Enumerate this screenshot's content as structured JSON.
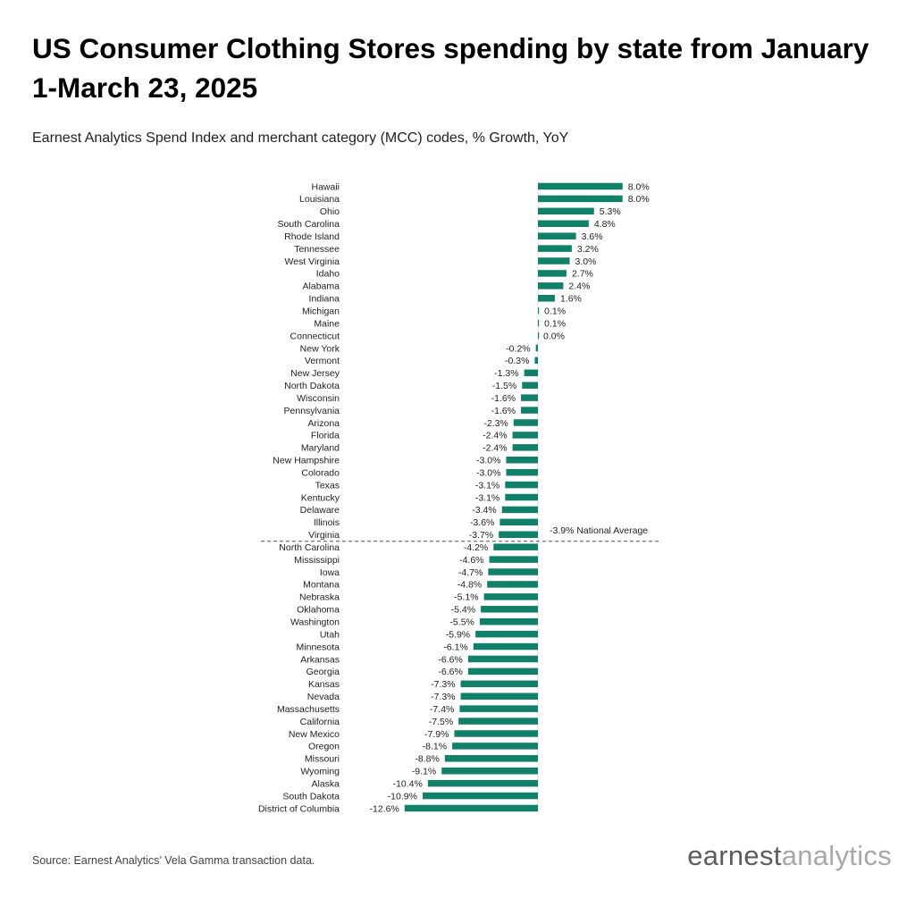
{
  "header": {
    "title": "US Consumer Clothing Stores spending by state from January 1-March 23, 2025",
    "subtitle": "Earnest Analytics Spend Index and merchant category (MCC) codes, % Growth, YoY"
  },
  "footer": {
    "source": "Source: Earnest Analytics’ Vela Gamma transaction data.",
    "logo_part1": "earnest",
    "logo_part2": "analytics"
  },
  "colors": {
    "bar": "#118068",
    "reference_line": "#555555"
  },
  "chart_data": {
    "type": "bar",
    "orientation": "horizontal",
    "title": "US Consumer Clothing Stores spending by state from January 1-March 23, 2025",
    "subtitle": "Earnest Analytics Spend Index and merchant category (MCC) codes, % Growth, YoY",
    "xlabel": "",
    "ylabel": "",
    "xlim": [
      -12.6,
      8.0
    ],
    "grid": false,
    "categories": [
      "Hawaii",
      "Louisiana",
      "Ohio",
      "South Carolina",
      "Rhode Island",
      "Tennessee",
      "West Virginia",
      "Idaho",
      "Alabama",
      "Indiana",
      "Michigan",
      "Maine",
      "Connecticut",
      "New York",
      "Vermont",
      "New Jersey",
      "North Dakota",
      "Wisconsin",
      "Pennsylvania",
      "Arizona",
      "Florida",
      "Maryland",
      "New Hampshire",
      "Colorado",
      "Texas",
      "Kentucky",
      "Delaware",
      "Illinois",
      "Virginia",
      "North Carolina",
      "Mississippi",
      "Iowa",
      "Montana",
      "Nebraska",
      "Oklahoma",
      "Washington",
      "Utah",
      "Minnesota",
      "Arkansas",
      "Georgia",
      "Kansas",
      "Nevada",
      "Massachusetts",
      "California",
      "New Mexico",
      "Oregon",
      "Missouri",
      "Wyoming",
      "Alaska",
      "South Dakota",
      "District of Columbia"
    ],
    "values": [
      8.0,
      8.0,
      5.3,
      4.8,
      3.6,
      3.2,
      3.0,
      2.7,
      2.4,
      1.6,
      0.1,
      0.1,
      0.0,
      -0.2,
      -0.3,
      -1.3,
      -1.5,
      -1.6,
      -1.6,
      -2.3,
      -2.4,
      -2.4,
      -3.0,
      -3.0,
      -3.1,
      -3.1,
      -3.4,
      -3.6,
      -3.7,
      -4.2,
      -4.6,
      -4.7,
      -4.8,
      -5.1,
      -5.4,
      -5.5,
      -5.9,
      -6.1,
      -6.6,
      -6.6,
      -7.3,
      -7.3,
      -7.4,
      -7.5,
      -7.9,
      -8.1,
      -8.8,
      -9.1,
      -10.4,
      -10.9,
      -12.6
    ],
    "value_labels": [
      "8.0%",
      "8.0%",
      "5.3%",
      "4.8%",
      "3.6%",
      "3.2%",
      "3.0%",
      "2.7%",
      "2.4%",
      "1.6%",
      "0.1%",
      "0.1%",
      "0.0%",
      "-0.2%",
      "-0.3%",
      "-1.3%",
      "-1.5%",
      "-1.6%",
      "-1.6%",
      "-2.3%",
      "-2.4%",
      "-2.4%",
      "-3.0%",
      "-3.0%",
      "-3.1%",
      "-3.1%",
      "-3.4%",
      "-3.6%",
      "-3.7%",
      "-4.2%",
      "-4.6%",
      "-4.7%",
      "-4.8%",
      "-5.1%",
      "-5.4%",
      "-5.5%",
      "-5.9%",
      "-6.1%",
      "-6.6%",
      "-6.6%",
      "-7.3%",
      "-7.3%",
      "-7.4%",
      "-7.5%",
      "-7.9%",
      "-8.1%",
      "-8.8%",
      "-9.1%",
      "-10.4%",
      "-10.9%",
      "-12.6%"
    ],
    "reference_line": {
      "value": -3.9,
      "label": "-3.9% National Average"
    }
  }
}
